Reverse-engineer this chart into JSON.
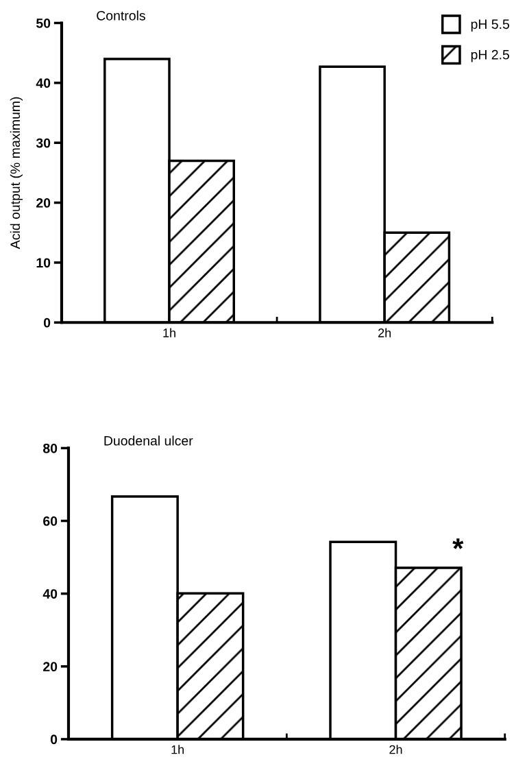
{
  "chart_data": [
    {
      "type": "bar",
      "title": "Controls",
      "ylabel": "Acid output (% maximum)",
      "categories": [
        "1h",
        "2h"
      ],
      "series": [
        {
          "name": "pH 5.5",
          "color": "#ffffff",
          "values": [
            44.0,
            42.7
          ]
        },
        {
          "name": "pH 2.5",
          "color": "#000000",
          "values": [
            27.0,
            15.0
          ]
        }
      ],
      "ylim": [
        0,
        50
      ],
      "yticks": [
        0,
        10,
        20,
        30,
        40,
        50
      ],
      "grid": false,
      "legend": "top right"
    },
    {
      "type": "bar",
      "title": "Duodenal ulcer",
      "categories": [
        "1h",
        "2h"
      ],
      "series": [
        {
          "color": "#ffffff",
          "values": [
            66.7,
            54.2
          ]
        },
        {
          "color": "#000000",
          "values": [
            40.1,
            47.1
          ]
        }
      ],
      "ylim": [
        0,
        80
      ],
      "yticks": [
        0,
        20,
        40,
        60,
        80
      ],
      "grid": false,
      "annotations": [
        {
          "text": "*",
          "x": "2h",
          "y": 47.1
        }
      ]
    }
  ]
}
